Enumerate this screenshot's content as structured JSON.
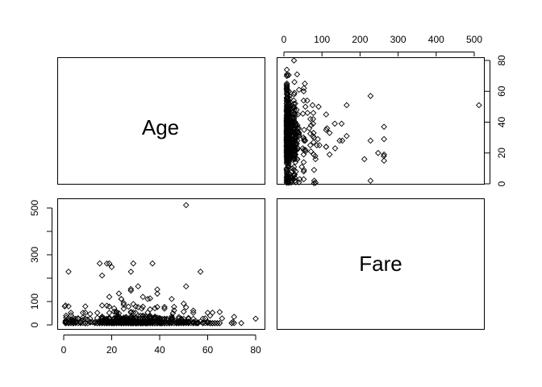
{
  "chart_data": {
    "type": "scatter",
    "layout": "pairs-matrix",
    "variables": [
      "Age",
      "Fare"
    ],
    "ranges": {
      "Age": [
        0,
        80
      ],
      "Fare": [
        0,
        512.33
      ]
    },
    "ticks": {
      "Age": [
        0,
        20,
        40,
        60,
        80
      ],
      "Fare": [
        0,
        100,
        300,
        500
      ],
      "Fare_top": [
        0,
        100,
        200,
        300,
        400,
        500
      ]
    },
    "points": {
      "age": [
        22,
        38,
        26,
        35,
        35,
        54,
        2,
        27,
        14,
        4,
        58,
        20,
        39,
        14,
        55,
        2,
        31,
        35,
        34,
        15,
        28,
        8,
        38,
        19,
        40,
        66,
        28,
        42,
        21,
        18,
        14,
        40,
        27,
        3,
        19,
        18,
        7,
        21,
        49,
        29,
        65,
        21,
        28.5,
        5,
        11,
        22,
        38,
        45,
        4,
        29,
        19,
        17,
        26,
        32,
        16,
        21,
        26,
        32,
        25,
        0.83,
        30,
        22,
        29,
        28,
        17,
        33,
        16,
        23,
        24,
        29,
        20,
        46,
        26,
        59,
        71,
        23,
        34,
        34,
        28,
        21,
        33,
        37,
        28,
        21,
        38,
        47,
        14.5,
        22,
        20,
        17,
        21,
        70.5,
        29,
        24,
        2,
        21,
        32.5,
        32.5,
        54,
        12,
        24,
        45,
        33,
        20,
        47,
        29,
        25,
        23,
        19,
        37,
        16,
        24,
        22,
        24,
        19,
        18,
        19,
        27,
        9,
        36.5,
        42,
        51,
        22,
        55.5,
        40.5,
        51,
        16,
        30,
        44,
        40,
        26,
        17,
        1,
        9,
        45,
        28,
        61,
        4,
        1,
        21,
        56,
        18,
        50,
        30,
        36,
        9,
        1,
        4,
        45,
        40,
        36,
        32,
        19,
        19,
        3,
        44,
        58,
        42,
        24,
        28,
        34,
        45.5,
        18,
        2,
        32,
        26,
        16,
        40,
        24,
        35,
        22,
        30,
        31,
        27,
        42,
        32,
        30,
        16,
        27,
        51,
        38,
        22,
        19,
        20.5,
        18,
        35,
        29,
        59,
        5,
        24,
        44,
        8,
        19,
        33,
        29,
        22,
        30,
        44,
        25,
        24,
        37,
        54,
        29,
        62,
        30,
        41,
        29,
        30,
        35,
        50,
        3,
        52,
        40,
        36,
        16,
        25,
        58,
        35,
        25,
        41,
        37,
        63,
        45,
        7,
        35,
        65,
        28,
        16,
        19,
        33,
        30,
        22,
        42,
        22,
        26,
        19,
        36,
        24,
        24,
        23.5,
        2,
        50,
        19,
        0.92,
        17,
        30,
        30,
        24,
        18,
        26,
        28,
        43,
        26,
        24,
        54,
        31,
        40,
        22,
        27,
        30,
        22,
        36,
        61,
        36,
        31,
        16,
        45.5,
        38,
        16,
        29,
        41,
        45,
        45,
        2,
        24,
        28,
        25,
        36,
        24,
        40,
        3,
        42,
        23,
        15,
        25,
        28,
        22,
        38,
        40,
        29,
        45,
        35,
        30,
        60,
        24,
        25,
        18,
        19,
        22,
        3,
        22,
        27,
        20,
        19,
        42,
        1,
        32,
        35,
        18,
        1,
        36,
        17,
        36,
        21,
        28,
        23,
        24,
        22,
        31,
        46,
        23,
        28,
        39,
        26,
        21,
        28,
        20,
        34,
        51,
        3,
        21,
        33,
        44,
        34,
        18,
        30,
        10,
        21,
        29,
        28,
        18,
        28,
        19,
        32,
        28,
        42,
        17,
        50,
        14,
        21,
        24,
        64,
        31,
        45,
        20,
        25,
        28,
        4,
        13,
        34,
        5,
        52,
        36,
        30,
        49,
        29,
        65,
        50,
        48,
        34,
        47,
        48,
        38,
        56,
        0.75,
        38,
        33,
        23,
        22,
        34,
        29,
        22,
        2,
        9,
        50,
        63,
        25,
        35,
        58,
        30,
        9,
        21,
        55,
        71,
        21,
        54,
        25,
        24,
        17,
        21,
        37,
        16,
        18,
        33,
        28,
        26,
        29,
        36,
        54,
        24,
        47,
        34,
        36,
        32,
        30,
        22,
        44,
        40.5,
        50,
        39,
        23,
        2,
        17,
        30,
        7,
        45,
        30,
        22,
        36,
        9,
        11,
        32,
        50,
        64,
        19,
        33,
        8,
        17,
        27,
        22,
        22,
        62,
        48,
        39,
        36,
        40,
        28,
        24,
        19,
        29,
        32,
        62,
        53,
        36,
        16,
        19,
        34,
        39,
        32,
        25,
        39,
        54,
        36,
        18,
        47,
        60,
        22,
        35,
        52,
        47,
        37,
        36,
        49,
        49,
        24,
        44,
        35,
        36,
        30,
        27,
        22,
        40,
        39,
        35,
        24,
        34,
        26,
        4,
        26,
        27,
        42,
        20,
        21,
        21,
        61,
        57,
        21,
        26,
        80,
        51,
        32,
        9,
        28,
        32,
        31,
        41,
        20,
        24,
        2,
        0.75,
        48,
        19,
        56,
        23,
        18,
        21,
        18,
        24,
        32,
        23,
        58,
        50,
        40,
        47,
        36,
        20,
        32,
        25,
        43,
        40,
        31,
        70,
        31,
        18,
        24.5,
        18,
        43,
        36,
        27,
        20,
        14,
        60,
        25,
        14,
        19,
        18,
        15,
        31,
        4,
        25,
        60,
        52,
        44,
        49,
        42,
        18,
        35,
        18,
        25,
        26,
        39,
        45,
        42,
        22,
        24,
        48,
        29,
        52,
        19,
        38,
        27,
        33,
        6,
        17,
        34,
        50,
        27,
        20,
        30,
        25,
        25,
        29,
        11,
        23,
        23,
        28.5,
        48,
        35,
        36,
        21,
        24,
        31,
        70,
        16,
        30,
        19,
        31,
        4,
        6,
        33,
        23,
        48,
        0.67,
        28,
        18,
        34,
        33,
        41,
        20,
        36,
        16,
        51,
        30.5,
        32,
        24,
        48,
        57,
        54,
        18,
        5,
        43,
        13,
        17,
        29,
        25,
        25,
        18,
        8,
        1,
        46,
        16,
        25,
        39,
        49,
        31,
        30,
        30,
        34,
        31,
        11,
        0.42,
        27,
        31,
        39,
        18,
        39,
        33,
        26,
        39,
        35,
        6,
        30.5,
        23,
        31,
        43,
        10,
        52,
        27,
        38,
        27,
        2,
        1,
        62,
        15,
        0.83,
        23,
        18,
        39,
        21,
        32,
        20,
        16,
        30,
        34.5,
        17,
        42,
        35,
        28,
        4,
        74,
        9,
        16,
        44,
        18,
        45,
        51,
        24,
        41,
        21,
        48,
        24,
        42,
        27,
        31,
        4,
        26,
        47,
        33,
        47,
        28,
        15,
        20,
        19,
        56,
        25,
        33,
        22,
        28,
        25,
        39,
        27,
        19,
        26,
        32
      ],
      "fare": [
        7.25,
        71.28,
        7.93,
        53.1,
        8.05,
        51.86,
        21.08,
        11.13,
        30.07,
        16.7,
        26.55,
        8.05,
        31.28,
        7.85,
        16,
        29.13,
        18,
        26,
        13,
        8.03,
        35.5,
        21.08,
        31.39,
        263,
        7.88,
        27.72,
        146.52,
        7.75,
        10.5,
        82.17,
        52,
        7.23,
        11.24,
        41.58,
        8.05,
        7.85,
        13,
        8.05,
        21.08,
        7.23,
        7.75,
        9.22,
        13,
        10.5,
        46.9,
        7.75,
        26,
        7.9,
        7.75,
        10.5,
        27.72,
        7.85,
        13,
        39.69,
        35.5,
        7.9,
        10.5,
        27.72,
        26.29,
        18.75,
        8.05,
        10.5,
        9,
        16.7,
        7.92,
        77.96,
        34.38,
        7.85,
        10.5,
        263,
        7.75,
        61.98,
        31.28,
        27.72,
        34.65,
        9.83,
        13,
        30.07,
        26,
        7.9,
        8.05,
        13,
        8.05,
        9.5,
        7.05,
        13,
        14.45,
        7.92,
        8.05,
        7.78,
        7.85,
        12.48,
        11.5,
        7.25,
        10.46,
        7.23,
        69.55,
        7.79,
        7.73,
        11.13,
        13,
        21.08,
        36.75,
        8.05,
        7.75,
        9.48,
        7.75,
        7.85,
        10.5,
        263,
        8.05,
        14.11,
        10.5,
        7.73,
        7.9,
        8.05,
        10.5,
        21.67,
        7.75,
        14.45,
        7.75,
        75.25,
        52,
        7.8,
        7.05,
        8.05,
        13,
        31.39,
        7.75,
        29.7,
        9,
        7.85,
        12.48,
        52.55,
        26.55,
        13,
        8.66,
        21.08,
        11.13,
        56.5,
        8.05,
        8.66,
        26,
        15.5,
        7.9,
        79.2,
        39.69,
        20.21,
        36.75,
        8.05,
        26.55,
        13,
        13.79,
        30.07,
        14.45,
        10.5,
        8.05,
        26.55,
        7.9,
        9.48,
        36.75,
        50,
        7.88,
        79.65,
        10.5,
        8.05,
        7.75,
        12.35,
        7.9,
        26,
        8.05,
        13.42,
        13,
        10.5,
        7.92,
        15.5,
        7.9,
        26,
        7.05,
        8.05,
        30.5,
        21,
        26.55,
        7.75,
        7.25,
        13,
        26,
        7.9,
        26.28,
        15.5,
        7.23,
        31.39,
        9.5,
        9.22,
        8.05,
        56.5,
        8.66,
        7.55,
        26,
        7.25,
        7.75,
        13,
        12.35,
        7.05,
        78.85,
        7.9,
        30,
        7.25,
        7.75,
        91.08,
        23,
        29.7,
        7.92,
        10.5,
        83.16,
        26.25,
        7.85,
        8.05,
        13,
        7.23,
        13,
        7.9,
        11.5,
        8.05,
        26,
        55,
        7.75,
        14.45,
        78.27,
        7.25,
        7.75,
        8.05,
        69.55,
        26,
        26,
        7.9,
        7.83,
        7.85,
        20.53,
        15.5,
        9.59,
        7.78,
        26,
        7.75,
        8.05,
        7.8,
        10.5,
        13,
        26,
        7.9,
        15.85,
        21.68,
        7.75,
        8.05,
        26,
        76.29,
        7.9,
        9,
        25.93,
        7.78,
        8.05,
        35.5,
        7.25,
        7.78,
        7.75,
        8.05,
        26.55,
        26,
        13,
        7.9,
        26,
        21.08,
        7.75,
        7.92,
        14.5,
        7.75,
        93.5,
        30.5,
        7.25,
        22.36,
        8.05,
        76.73,
        14,
        7.75,
        11.5,
        7.23,
        7.05,
        7.9,
        9.5,
        53.1,
        26,
        7.75,
        7.78,
        13,
        110.88,
        7.88,
        10.5,
        120,
        7.55,
        8.05,
        7.9,
        10.5,
        7.77,
        10.5,
        23.25,
        13,
        7.85,
        19.5,
        7.75,
        13,
        113.28,
        8.05,
        7.85,
        26.55,
        153.46,
        14.45,
        8.05,
        7.92,
        7.85,
        77.29,
        26.29,
        8.05,
        76.73,
        34.02,
        7.9,
        227.53,
        8.66,
        13,
        10.5,
        52,
        17.8,
        13,
        7.75,
        8.05,
        7.79,
        29.13,
        7.05,
        15.75,
        7.88,
        9.5,
        7.89,
        53.1,
        26,
        13,
        55.9,
        8.05,
        17.4,
        12.65,
        7.75,
        13,
        26,
        7.9,
        7.85,
        110.88,
        8.05,
        26,
        7.92,
        10.5,
        12.48,
        26,
        13,
        7.23,
        9.35,
        7.75,
        13,
        89.1,
        7.73,
        7.75,
        7.05,
        13,
        11.5,
        7.75,
        8.05,
        7.88,
        7.25,
        35.5,
        7.25,
        7.88,
        7.75,
        8.05,
        14.45,
        10.5,
        9.5,
        7.23,
        15.25,
        7.65,
        13,
        7.75,
        10.5,
        51.48,
        26.55,
        71,
        7.75,
        8.05,
        29.13,
        10.5,
        86.5,
        8.05,
        10.46,
        7.52,
        16.1,
        7.85,
        7.9,
        39.69,
        7.75,
        13,
        7.05,
        12.48,
        61.18,
        26.55,
        8.05,
        7.25,
        13,
        7.75,
        12,
        34.38,
        7.9,
        7.79,
        7.75,
        18.79,
        35.5,
        7.85,
        26.55,
        7.9,
        7.78,
        30.7,
        8.05,
        9.5,
        39,
        7.75,
        26.55,
        7.9,
        13,
        7.05,
        7.78,
        120,
        7.88,
        7.85,
        15.05,
        7.75,
        26,
        7.23,
        10.5,
        9.5,
        8.05,
        15.5,
        13.86,
        110.88,
        8.05,
        7.23,
        7.9,
        52.55,
        7.85,
        26,
        7.9,
        10.52,
        8.05,
        15.5,
        7.75,
        7.85,
        133.65,
        7.9,
        66.6,
        26,
        7.9,
        12.47,
        10.5,
        7.25,
        26,
        7.92,
        6.95,
        7.75,
        26.55,
        7.55,
        13,
        13.5,
        26,
        7.75,
        15.5,
        77.96,
        9.22,
        7.75,
        7.05,
        110.88,
        7.79,
        13,
        7.78,
        7.23,
        21,
        8.05,
        7.75,
        7.85,
        14.45,
        8.05,
        39.69,
        227.53,
        8.11,
        7.75,
        26.55,
        512.33,
        7.75,
        7.75,
        13,
        7.65,
        164.87,
        7.9,
        7.75,
        26,
        7.05,
        83.16,
        13.42,
        7.75,
        10.5,
        30,
        12.88,
        7.88,
        262.38,
        7.92,
        7.78,
        26.25,
        7.9,
        8.05,
        26.55,
        7.05,
        10.5,
        7.85,
        27.72,
        9.5,
        7.85,
        7.75,
        13,
        7.78,
        39.4,
        16.7,
        26,
        8.05,
        26.55,
        13,
        7.75,
        9.84,
        7.9,
        52,
        31.28,
        7.88,
        51.86,
        7.9,
        13,
        26,
        7.75,
        20.58,
        7.9,
        13.86,
        9.5,
        13,
        7.05,
        10.5,
        26.55,
        7.88,
        26.55,
        7.75,
        7.05,
        13,
        7.75,
        8.05,
        9.22,
        8.05,
        21,
        14.45,
        10.5,
        8.05,
        7.88,
        12.29,
        26,
        7.79,
        9.84,
        56.5,
        8.05,
        8.05,
        7.78,
        7.9,
        7.05,
        7.75,
        13,
        7.75,
        8.05,
        7.9,
        7.78,
        26.55,
        7.25,
        13,
        12.65,
        10.46,
        7.85,
        29.13,
        8.05,
        26,
        7.75,
        10.5,
        28.5,
        7.23,
        36.75,
        33.5,
        13,
        7.05,
        21,
        7.25,
        26.55,
        7.79,
        13,
        26.55,
        13,
        15.25,
        7.9,
        7.25,
        7.23,
        27.72,
        14.46,
        7.75,
        7.05,
        7.85,
        8.05,
        7.78,
        26,
        24.15,
        8.05,
        7.9,
        16.1,
        52,
        10.5,
        7.75,
        211.34,
        69.3,
        8.66,
        8.05,
        7.9,
        27.9,
        7.65,
        8.05,
        12.35,
        10.5,
        79.2,
        26.55,
        7.85,
        7.9,
        13,
        151.55,
        27.9,
        7.75,
        23.45,
        7.92,
        8.05,
        7.85,
        49.5,
        13,
        7.25,
        22.36,
        11.13,
        7.9,
        7.25,
        8.05,
        227.53,
        31.28,
        7.75,
        263,
        7.9,
        134.5,
        15.75,
        7.92,
        26,
        10.5,
        7.05,
        26.29,
        15.5,
        7.05,
        18.75,
        7.05,
        8.05,
        7.9,
        7.65,
        7.75,
        7.85,
        9.5,
        13,
        7.78,
        9.5,
        164.87,
        7.75,
        7.75,
        14.11,
        10.5,
        8.05,
        14.45,
        7.9,
        7.92,
        28.71,
        13.86,
        13,
        29.13,
        7.75,
        30,
        9.48,
        247.52,
        7.9,
        8.05,
        7.05,
        8.05,
        29.7,
        10.5,
        7.92,
        15.5,
        7.75,
        30.5,
        13,
        7.23,
        7.9,
        13,
        19.26,
        7.75,
        13,
        30,
        23.45,
        30,
        7.75
      ]
    }
  }
}
